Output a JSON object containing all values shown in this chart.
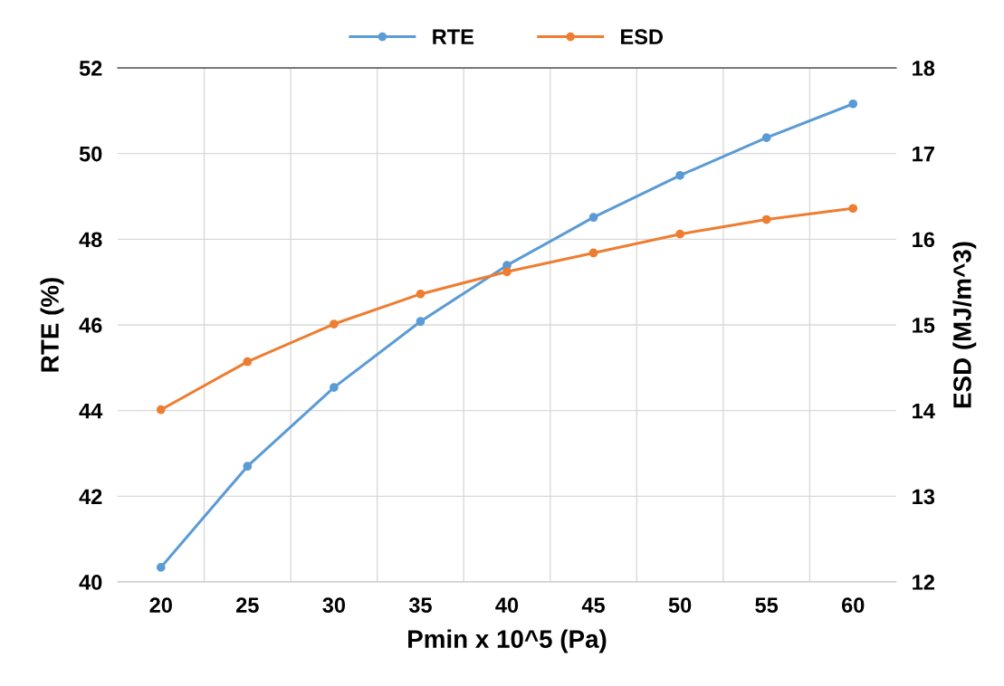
{
  "chart_data": {
    "type": "line",
    "xlabel": "Pmin x 10^5 (Pa)",
    "ylabel": "RTE (%)",
    "y2label": "ESD (MJ/m^3)",
    "categories": [
      "20",
      "25",
      "30",
      "35",
      "40",
      "45",
      "50",
      "55",
      "60"
    ],
    "series": [
      {
        "name": "RTE",
        "color": "#5b9bd5",
        "values": [
          40.34,
          42.7,
          44.54,
          46.08,
          47.39,
          48.51,
          49.49,
          50.37,
          51.16
        ]
      },
      {
        "name": "ESD",
        "color": "#ed7d31",
        "axis": "y2",
        "values": [
          14.01,
          14.57,
          15.01,
          15.36,
          15.62,
          15.84,
          16.06,
          16.23,
          16.36
        ]
      }
    ],
    "ylim": [
      40,
      52
    ],
    "yticks": [
      40,
      42,
      44,
      46,
      48,
      50,
      52
    ],
    "y2lim": [
      12,
      18
    ],
    "y2ticks": [
      12,
      13,
      14,
      15,
      16,
      17,
      18
    ],
    "grid": true,
    "legend": "top",
    "marker": "circle",
    "line_style": "solid"
  }
}
